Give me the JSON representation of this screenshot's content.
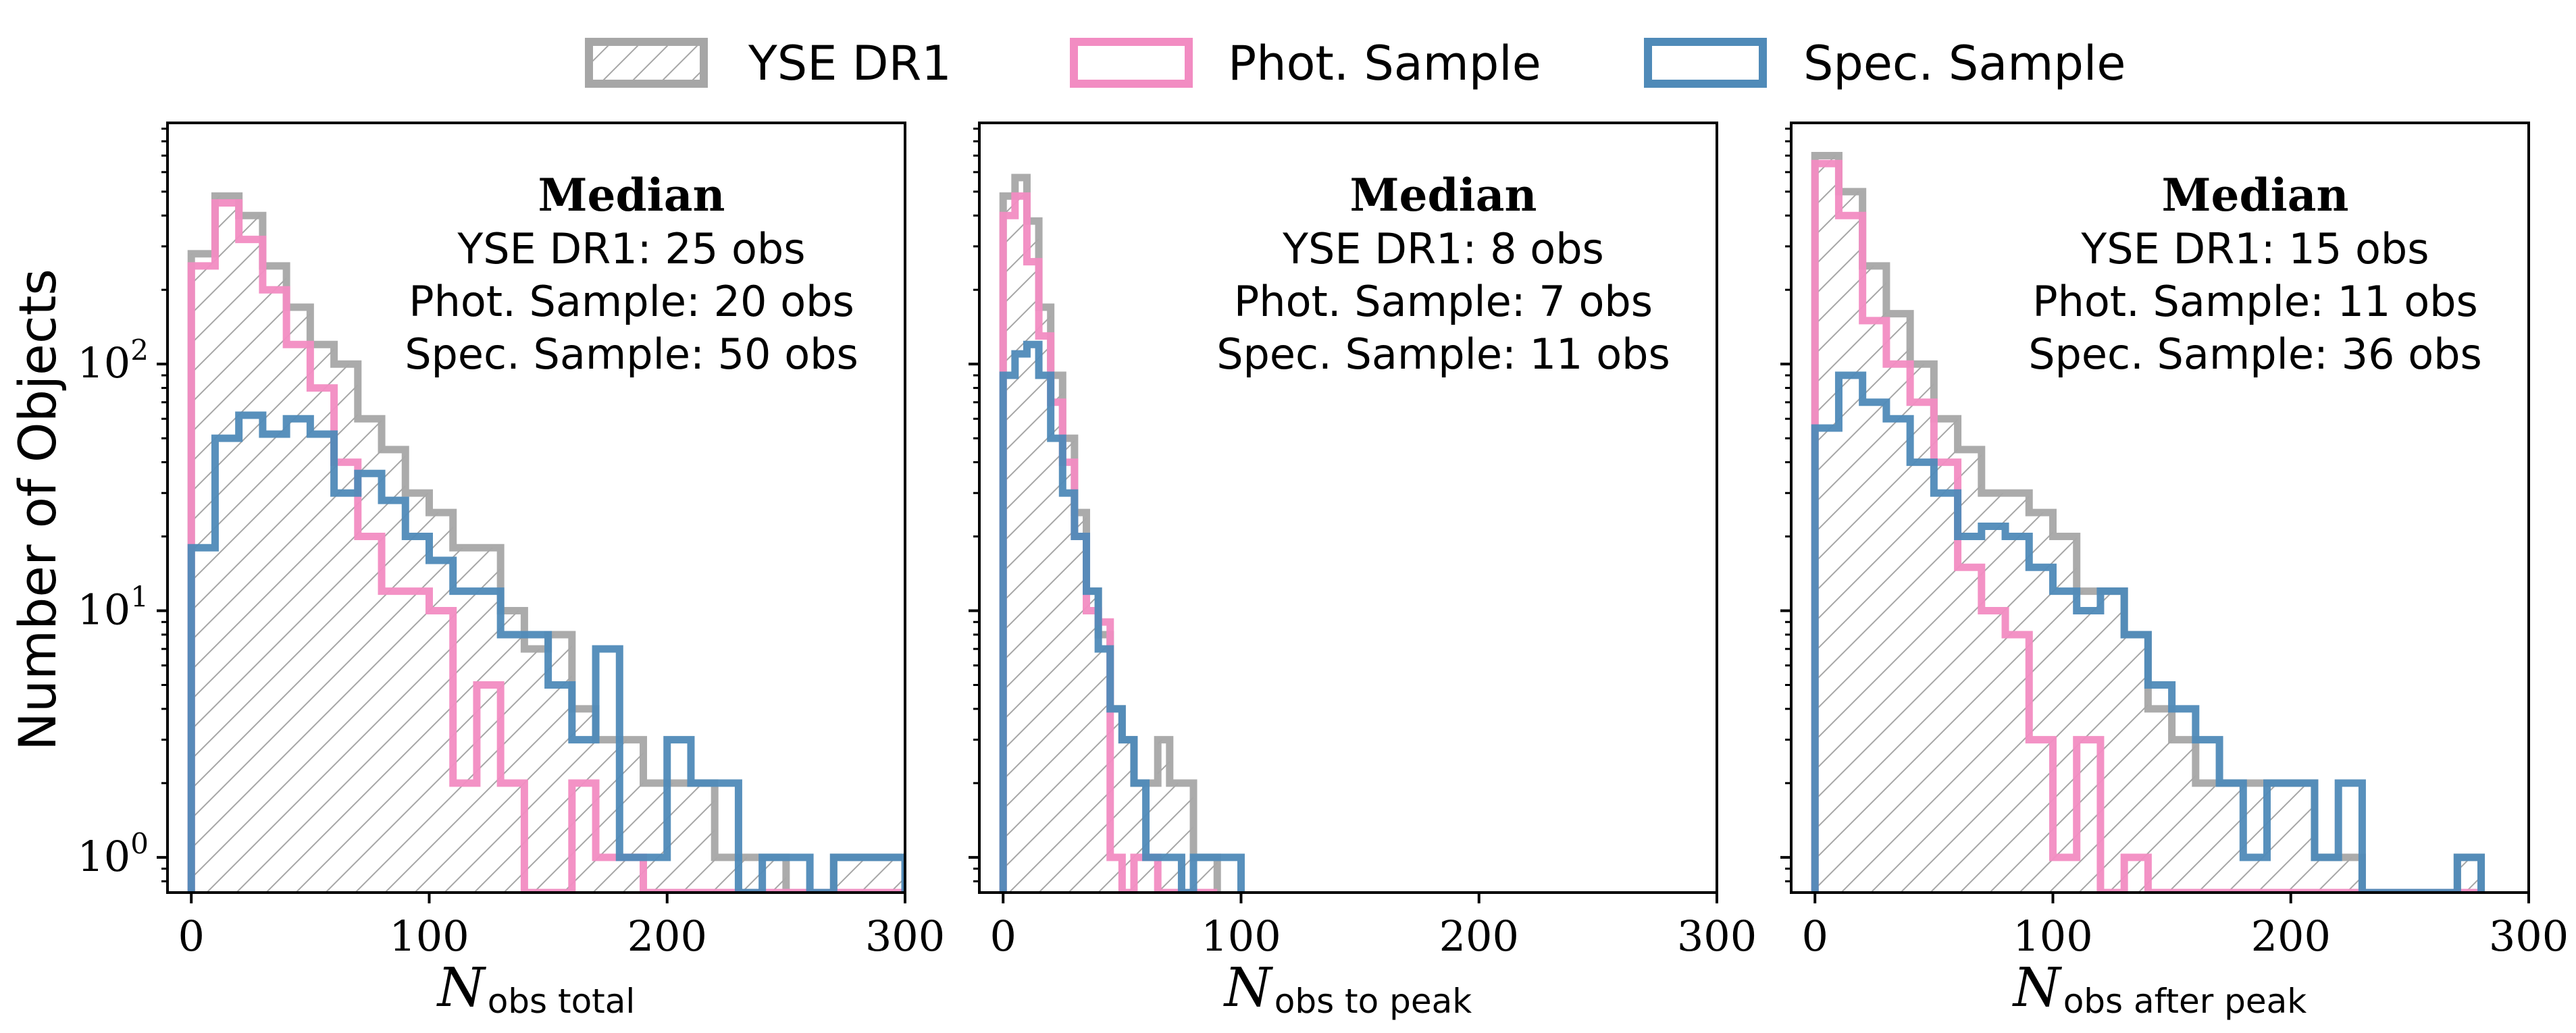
{
  "legend": {
    "placement": "top-center",
    "entries": [
      {
        "label": "YSE DR1",
        "color": "#a6a6a6",
        "style": "hatched"
      },
      {
        "label": "Phot. Sample",
        "color": "#f28cc2",
        "style": "outline"
      },
      {
        "label": "Spec. Sample",
        "color": "#4f8ab8",
        "style": "outline"
      }
    ]
  },
  "y_axis_label": "Number of Objects",
  "colors": {
    "yse": "#a6a6a6",
    "phot": "#f28cc2",
    "spec": "#4f8ab8",
    "hatch": "#a6a6a6"
  },
  "chart_data": [
    {
      "type": "histogram-step",
      "xlabel_main": "N",
      "xlabel_sub": "obs total",
      "xlim": [
        -10,
        300
      ],
      "ylim": [
        0.72,
        950
      ],
      "yscale": "log",
      "xticks": [
        0,
        100,
        200,
        300
      ],
      "yticks": [
        1,
        10,
        100
      ],
      "annotation": {
        "title": "Median",
        "lines": [
          "YSE DR1: 25 obs",
          "Phot. Sample: 20 obs",
          "Spec. Sample: 50 obs"
        ]
      },
      "bin_start": 0,
      "bin_width": 10,
      "series": [
        {
          "name": "YSE DR1",
          "key": "yse",
          "values": [
            280,
            480,
            400,
            250,
            170,
            120,
            100,
            60,
            45,
            30,
            25,
            18,
            18,
            10,
            7,
            8,
            4,
            3,
            3,
            2,
            2,
            2,
            1,
            1,
            1,
            0,
            0,
            1,
            1,
            1
          ]
        },
        {
          "name": "Phot. Sample",
          "key": "phot",
          "values": [
            250,
            450,
            320,
            200,
            120,
            80,
            40,
            20,
            12,
            12,
            10,
            2,
            5,
            2,
            0,
            0,
            2,
            1,
            1,
            0,
            0,
            0,
            0,
            0,
            0,
            0,
            0,
            0,
            0,
            0
          ]
        },
        {
          "name": "Spec. Sample",
          "key": "spec",
          "values": [
            18,
            50,
            62,
            52,
            60,
            52,
            30,
            36,
            28,
            20,
            16,
            12,
            12,
            8,
            8,
            5,
            3,
            7,
            1,
            1,
            3,
            2,
            2,
            0,
            1,
            1,
            0,
            1,
            1,
            1
          ]
        }
      ]
    },
    {
      "type": "histogram-step",
      "xlabel_main": "N",
      "xlabel_sub": "obs to peak",
      "xlim": [
        -10,
        300
      ],
      "ylim": [
        0.72,
        950
      ],
      "yscale": "log",
      "xticks": [
        0,
        100,
        200,
        300
      ],
      "yticks": [
        1,
        10,
        100
      ],
      "annotation": {
        "title": "Median",
        "lines": [
          "YSE DR1: 8 obs",
          "Phot. Sample: 7 obs",
          "Spec. Sample: 11 obs"
        ]
      },
      "bin_start": 0,
      "bin_width": 5,
      "series": [
        {
          "name": "YSE DR1",
          "key": "yse",
          "values": [
            480,
            570,
            380,
            170,
            90,
            50,
            25,
            12,
            8,
            4,
            3,
            2,
            2,
            3,
            2,
            2,
            1,
            1
          ]
        },
        {
          "name": "Phot. Sample",
          "key": "phot",
          "values": [
            400,
            480,
            260,
            130,
            70,
            40,
            20,
            10,
            9,
            1,
            0,
            1,
            1,
            0,
            0,
            0,
            0,
            0
          ]
        },
        {
          "name": "Spec. Sample",
          "key": "spec",
          "values": [
            90,
            110,
            120,
            90,
            50,
            30,
            20,
            12,
            7,
            4,
            3,
            2,
            1,
            1,
            1,
            0,
            1,
            1,
            1,
            1
          ]
        }
      ]
    },
    {
      "type": "histogram-step",
      "xlabel_main": "N",
      "xlabel_sub": "obs after peak",
      "xlim": [
        -10,
        300
      ],
      "ylim": [
        0.72,
        950
      ],
      "yscale": "log",
      "xticks": [
        0,
        100,
        200,
        300
      ],
      "yticks": [
        1,
        10,
        100
      ],
      "annotation": {
        "title": "Median",
        "lines": [
          "YSE DR1: 15 obs",
          "Phot. Sample: 11 obs",
          "Spec. Sample: 36 obs"
        ]
      },
      "bin_start": 0,
      "bin_width": 10,
      "series": [
        {
          "name": "YSE DR1",
          "key": "yse",
          "values": [
            700,
            500,
            250,
            160,
            100,
            60,
            45,
            30,
            30,
            25,
            20,
            12,
            12,
            8,
            4,
            3,
            2,
            2,
            2,
            2,
            2,
            1,
            1,
            0,
            0,
            0,
            0,
            1
          ]
        },
        {
          "name": "Phot. Sample",
          "key": "phot",
          "values": [
            650,
            400,
            150,
            100,
            70,
            40,
            15,
            10,
            8,
            3,
            1,
            3,
            0,
            1,
            0,
            0,
            0,
            0,
            0,
            0,
            0,
            0,
            0,
            0,
            0,
            0,
            0,
            0
          ]
        },
        {
          "name": "Spec. Sample",
          "key": "spec",
          "values": [
            55,
            90,
            70,
            60,
            40,
            30,
            20,
            22,
            20,
            15,
            12,
            10,
            12,
            8,
            5,
            4,
            3,
            2,
            1,
            2,
            2,
            1,
            2,
            0,
            0,
            0,
            0,
            1
          ]
        }
      ]
    }
  ]
}
